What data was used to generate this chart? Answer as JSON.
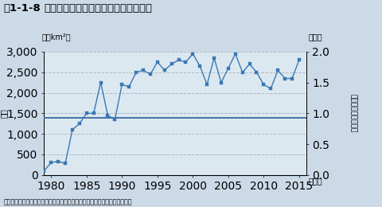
{
  "title_fig": "図1-1-8",
  "title_main": "南極上空のオゾンホールの面積の推移",
  "source": "資料：気象庁「南極オゾンホールの年最大面積の経年変化」より環境省作成",
  "ylabel_left": "面積",
  "ylabel_left_unit": "（万km²）",
  "ylabel_right_unit": "（倍）",
  "ylabel_right_label": "南極大陸との面積比",
  "xlabel": "（年）",
  "years": [
    1979,
    1980,
    1981,
    1982,
    1983,
    1984,
    1985,
    1986,
    1987,
    1988,
    1989,
    1990,
    1991,
    1992,
    1993,
    1994,
    1995,
    1996,
    1997,
    1998,
    1999,
    2000,
    2001,
    2002,
    2003,
    2004,
    2005,
    2006,
    2007,
    2008,
    2009,
    2010,
    2011,
    2012,
    2013,
    2014,
    2015
  ],
  "values": [
    100,
    300,
    330,
    280,
    1100,
    1250,
    1500,
    1500,
    2250,
    1450,
    1350,
    2200,
    2150,
    2500,
    2550,
    2450,
    2750,
    2550,
    2700,
    2800,
    2750,
    2950,
    2650,
    2200,
    2850,
    2250,
    2600,
    2950,
    2500,
    2700,
    2500,
    2200,
    2100,
    2550,
    2350,
    2350,
    2800
  ],
  "horizontal_line_value": 1390,
  "line_color": "#3a78b5",
  "hline_color": "#4472a8",
  "marker": "s",
  "marker_size": 2.8,
  "ylim_left": [
    0,
    3000
  ],
  "ylim_right": [
    0.0,
    2.0
  ],
  "yticks_left": [
    0,
    500,
    1000,
    1500,
    2000,
    2500,
    3000
  ],
  "yticks_right": [
    0.0,
    0.5,
    1.0,
    1.5,
    2.0
  ],
  "xticks": [
    1980,
    1985,
    1990,
    1995,
    2000,
    2005,
    2010,
    2015
  ],
  "grid_color": "#b0b8c4",
  "bg_color": "#dce8f0",
  "fig_bg_color": "#ccdae8",
  "title_color": "#000000",
  "title_fontsize": 9.5,
  "axis_fontsize": 7.0,
  "source_fontsize": 5.8
}
